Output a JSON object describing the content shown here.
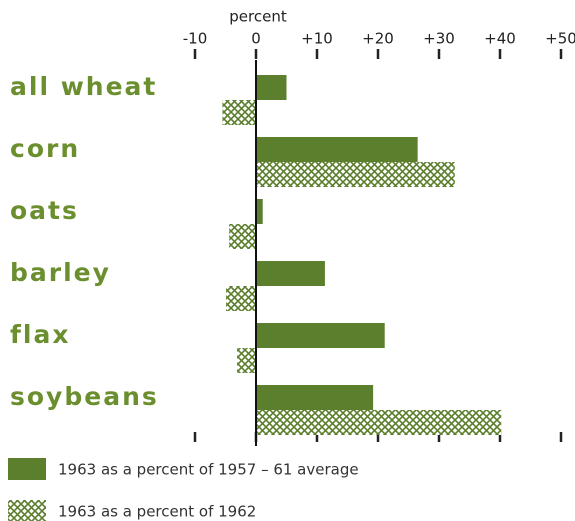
{
  "chart_data": {
    "type": "hbar",
    "x_label": "percent",
    "categories": [
      "all wheat",
      "corn",
      "oats",
      "barley",
      "flax",
      "soybeans"
    ],
    "series": [
      {
        "name": "1963 as a percent of 1957 – 61 average",
        "color": "#5b7f2c",
        "hatch": false,
        "values": [
          5,
          26.5,
          1.1,
          11.3,
          21.1,
          19.2
        ]
      },
      {
        "name": "1963 as a percent of 1962",
        "color": "#5b7f2c",
        "hatch": true,
        "values": [
          -5.5,
          32.6,
          -4.4,
          -4.9,
          -3.1,
          40.2
        ]
      }
    ],
    "xlim": [
      -10,
      50
    ],
    "xticks": [
      -10,
      0,
      {
        "value": 10,
        "label": "+10"
      },
      {
        "value": 20,
        "label": "+20"
      },
      {
        "value": 30,
        "label": "+30"
      },
      {
        "value": 40,
        "label": "+40"
      },
      {
        "value": 50,
        "label": "+50"
      }
    ],
    "label_color": "#6b8f2f"
  }
}
